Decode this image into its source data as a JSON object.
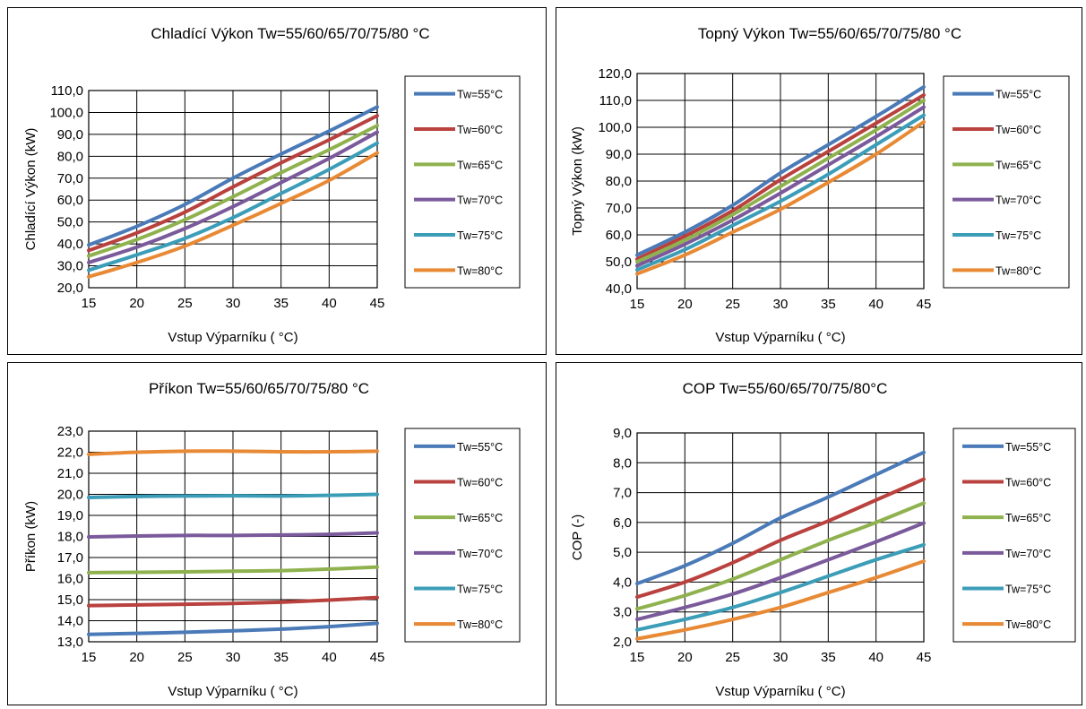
{
  "series_names": [
    "Tw=55°C",
    "Tw=60°C",
    "Tw=65°C",
    "Tw=70°C",
    "Tw=75°C",
    "Tw=80°C"
  ],
  "series_colors": [
    "#4a7ab7",
    "#b9413e",
    "#8fb24f",
    "#7a5a9b",
    "#3b9db7",
    "#e88a35"
  ],
  "chart_data": [
    {
      "type": "line",
      "title": "Chladící Výkon Tw=55/60/65/70/75/80  °C",
      "xlabel": "Vstup Výparníku (  °C)",
      "ylabel": "Chladící Výkon (kW)",
      "xlim": [
        15,
        45
      ],
      "ylim": [
        20,
        110
      ],
      "x_ticks": [
        "15",
        "20",
        "25",
        "30",
        "35",
        "40",
        "45"
      ],
      "y_ticks": [
        "20,0",
        "30,0",
        "40,0",
        "50,0",
        "60,0",
        "70,0",
        "80,0",
        "90,0",
        "100,0",
        "110,0"
      ],
      "grid": true,
      "legend": "right",
      "x": [
        15,
        20,
        25,
        30,
        35,
        40,
        45
      ],
      "series": [
        {
          "name": "Tw=55°C",
          "values": [
            39.5,
            48.0,
            58.0,
            70.0,
            81.0,
            91.5,
            102.5
          ]
        },
        {
          "name": "Tw=60°C",
          "values": [
            37.0,
            45.0,
            54.5,
            66.0,
            77.0,
            87.5,
            98.5
          ]
        },
        {
          "name": "Tw=65°C",
          "values": [
            34.5,
            42.0,
            51.0,
            61.5,
            72.5,
            83.0,
            94.0
          ]
        },
        {
          "name": "Tw=70°C",
          "values": [
            31.5,
            38.5,
            47.0,
            57.0,
            68.0,
            79.0,
            91.0
          ]
        },
        {
          "name": "Tw=75°C",
          "values": [
            28.0,
            35.0,
            42.5,
            52.0,
            63.0,
            74.0,
            86.0
          ]
        },
        {
          "name": "Tw=80°C",
          "values": [
            25.0,
            31.5,
            39.0,
            48.5,
            58.5,
            69.0,
            81.5
          ]
        }
      ]
    },
    {
      "type": "line",
      "title": "Topný Výkon Tw=55/60/65/70/75/80  °C",
      "xlabel": "Vstup Výparníku (  °C)",
      "ylabel": "Topný Výkon (kW)",
      "xlim": [
        15,
        45
      ],
      "ylim": [
        40,
        120
      ],
      "x_ticks": [
        "15",
        "20",
        "25",
        "30",
        "35",
        "40",
        "45"
      ],
      "y_ticks": [
        "40,0",
        "50,0",
        "60,0",
        "70,0",
        "80,0",
        "90,0",
        "100,0",
        "110,0",
        "120,0"
      ],
      "grid": true,
      "legend": "right",
      "x": [
        15,
        20,
        25,
        30,
        35,
        40,
        45
      ],
      "series": [
        {
          "name": "Tw=55°C",
          "values": [
            52.5,
            61.0,
            71.0,
            83.0,
            93.5,
            104.0,
            115.0
          ]
        },
        {
          "name": "Tw=60°C",
          "values": [
            51.0,
            59.5,
            69.0,
            80.5,
            91.0,
            101.5,
            112.0
          ]
        },
        {
          "name": "Tw=65°C",
          "values": [
            50.0,
            58.0,
            67.5,
            78.0,
            88.5,
            99.0,
            110.0
          ]
        },
        {
          "name": "Tw=70°C",
          "values": [
            48.5,
            56.5,
            65.5,
            75.5,
            86.0,
            96.5,
            107.5
          ]
        },
        {
          "name": "Tw=75°C",
          "values": [
            47.0,
            54.5,
            63.5,
            72.5,
            82.5,
            93.5,
            104.5
          ]
        },
        {
          "name": "Tw=80°C",
          "values": [
            45.5,
            52.5,
            61.0,
            69.5,
            79.5,
            90.0,
            102.0
          ]
        }
      ]
    },
    {
      "type": "line",
      "title": "Příkon Tw=55/60/65/70/75/80 °C",
      "xlabel": "Vstup Výparníku (  °C)",
      "ylabel": "Příkon (kW)",
      "xlim": [
        15,
        45
      ],
      "ylim": [
        13,
        23
      ],
      "x_ticks": [
        "15",
        "20",
        "25",
        "30",
        "35",
        "40",
        "45"
      ],
      "y_ticks": [
        "13,0",
        "14,0",
        "15,0",
        "16,0",
        "17,0",
        "18,0",
        "19,0",
        "20,0",
        "21,0",
        "22,0",
        "23,0"
      ],
      "grid": true,
      "legend": "right",
      "x": [
        15,
        20,
        25,
        30,
        35,
        40,
        45
      ],
      "series": [
        {
          "name": "Tw=55°C",
          "values": [
            13.35,
            13.4,
            13.45,
            13.52,
            13.6,
            13.72,
            13.88
          ]
        },
        {
          "name": "Tw=60°C",
          "values": [
            14.72,
            14.75,
            14.78,
            14.82,
            14.88,
            14.98,
            15.1
          ]
        },
        {
          "name": "Tw=65°C",
          "values": [
            16.28,
            16.3,
            16.32,
            16.35,
            16.38,
            16.45,
            16.55
          ]
        },
        {
          "name": "Tw=70°C",
          "values": [
            17.98,
            18.02,
            18.05,
            18.05,
            18.07,
            18.1,
            18.17
          ]
        },
        {
          "name": "Tw=75°C",
          "values": [
            19.85,
            19.9,
            19.92,
            19.93,
            19.92,
            19.95,
            20.0
          ]
        },
        {
          "name": "Tw=80°C",
          "values": [
            21.9,
            22.0,
            22.05,
            22.05,
            22.02,
            22.02,
            22.05
          ]
        }
      ]
    },
    {
      "type": "line",
      "title": "COP Tw=55/60/65/70/75/80°C",
      "xlabel": "Vstup Výparníku (  °C)",
      "ylabel": "COP (-)",
      "xlim": [
        15,
        45
      ],
      "ylim": [
        2,
        9
      ],
      "x_ticks": [
        "15",
        "20",
        "25",
        "30",
        "35",
        "40",
        "45"
      ],
      "y_ticks": [
        "2,0",
        "3,0",
        "4,0",
        "5,0",
        "6,0",
        "7,0",
        "8,0",
        "9,0"
      ],
      "grid": true,
      "legend": "right",
      "x": [
        15,
        20,
        25,
        30,
        35,
        40,
        45
      ],
      "series": [
        {
          "name": "Tw=55°C",
          "values": [
            3.95,
            4.55,
            5.3,
            6.15,
            6.85,
            7.6,
            8.35
          ]
        },
        {
          "name": "Tw=60°C",
          "values": [
            3.5,
            4.0,
            4.65,
            5.4,
            6.05,
            6.75,
            7.45
          ]
        },
        {
          "name": "Tw=65°C",
          "values": [
            3.1,
            3.55,
            4.1,
            4.75,
            5.4,
            6.0,
            6.65
          ]
        },
        {
          "name": "Tw=70°C",
          "values": [
            2.75,
            3.15,
            3.6,
            4.15,
            4.75,
            5.35,
            5.98
          ]
        },
        {
          "name": "Tw=75°C",
          "values": [
            2.4,
            2.75,
            3.15,
            3.65,
            4.2,
            4.75,
            5.25
          ]
        },
        {
          "name": "Tw=80°C",
          "values": [
            2.1,
            2.4,
            2.75,
            3.15,
            3.65,
            4.15,
            4.7
          ]
        }
      ]
    }
  ]
}
